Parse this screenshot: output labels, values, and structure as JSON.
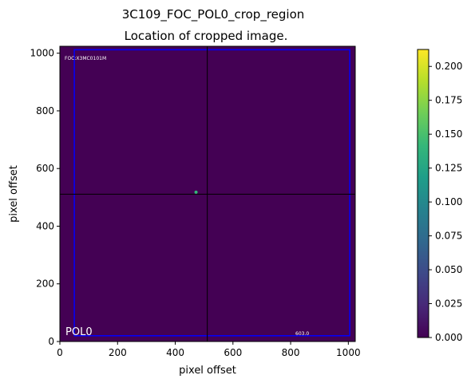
{
  "chart_data": {
    "type": "heatmap",
    "title": "3C109_FOC_POL0_crop_region",
    "subtitle": "Location of cropped image.",
    "xlabel": "pixel offset",
    "ylabel": "pixel offset",
    "xlim": [
      0,
      1024
    ],
    "ylim": [
      0,
      1024
    ],
    "xticks": [
      0,
      200,
      400,
      600,
      800,
      1000
    ],
    "yticks": [
      0,
      200,
      400,
      600,
      800,
      1000
    ],
    "background_value": 0.0,
    "colormap": "viridis",
    "colorbar": {
      "range": [
        0.0,
        0.2125
      ],
      "ticks": [
        "0.000",
        "0.025",
        "0.050",
        "0.075",
        "0.100",
        "0.125",
        "0.150",
        "0.175",
        "0.200"
      ]
    },
    "point_source": {
      "x": 472,
      "y": 518
    },
    "crosshair": {
      "x": 511,
      "y": 511,
      "color": "#000000"
    },
    "crop_rectangle": {
      "x0": 50,
      "y0": 20,
      "x1": 1005,
      "y1": 1012,
      "color": "#0000ff"
    },
    "annotations": {
      "instrument": "FOC:X3MC0101M",
      "filter": "POL0",
      "exptime": "603.0"
    },
    "grid": false
  },
  "colors": {
    "cmap": [
      "#440154",
      "#482878",
      "#3e4989",
      "#31688e",
      "#26828e",
      "#1f9e89",
      "#35b779",
      "#6ece58",
      "#b5de2b",
      "#fde725"
    ]
  }
}
